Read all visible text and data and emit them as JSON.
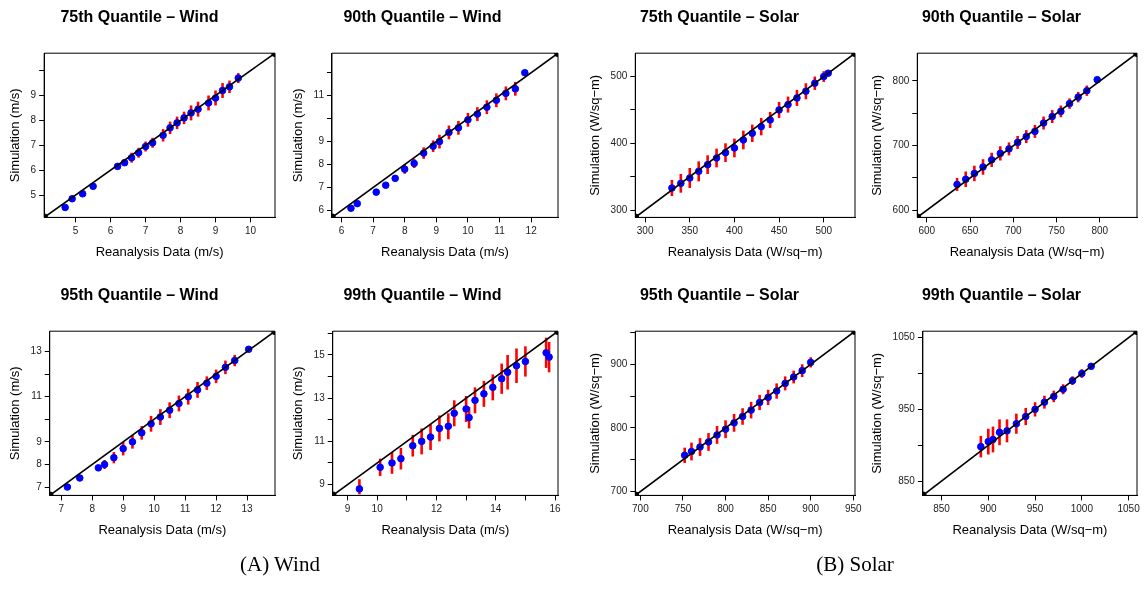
{
  "chart_data": [
    {
      "type": "scatter",
      "title": "75th Quantile – Wind",
      "xlabel": "Reanalysis Data (m/s)",
      "ylabel": "Simulation (m/s)",
      "marker": "circle",
      "xlim": [
        4.1,
        10.7
      ],
      "ylim": [
        4.1,
        10.7
      ],
      "xticks": [
        5,
        6,
        7,
        8,
        9,
        10
      ],
      "yticks": [
        5,
        6,
        7,
        8,
        9,
        {
          "value": 10,
          "label": null
        }
      ],
      "series": [
        {
          "type": "scatter",
          "color": "#0000ff",
          "x": [
            4.7,
            4.9,
            5.2,
            5.5,
            6.2,
            6.4,
            6.6,
            6.8,
            7.0,
            7.2,
            7.5,
            7.7,
            7.9,
            8.1,
            8.3,
            8.5,
            8.8,
            9.0,
            9.2,
            9.4,
            9.65
          ],
          "values": [
            4.5,
            4.85,
            5.05,
            5.35,
            6.15,
            6.3,
            6.5,
            6.7,
            6.95,
            7.1,
            7.4,
            7.7,
            7.9,
            8.1,
            8.3,
            8.45,
            8.7,
            8.9,
            9.2,
            9.35,
            9.7
          ],
          "errors": [
            null,
            null,
            null,
            null,
            null,
            null,
            0.2,
            0.2,
            0.2,
            0.2,
            0.25,
            0.25,
            0.25,
            0.25,
            0.3,
            0.3,
            0.3,
            0.3,
            0.3,
            0.25,
            0.2
          ]
        },
        {
          "type": "line",
          "color": "#000000",
          "x": [
            4.1,
            10.7
          ],
          "values": [
            4.1,
            10.7
          ]
        }
      ]
    },
    {
      "type": "scatter",
      "title": "90th Quantile – Wind",
      "xlabel": "Reanalysis Data (m/s)",
      "ylabel": "Simulation (m/s)",
      "marker": "circle",
      "xlim": [
        5.7,
        12.85
      ],
      "ylim": [
        5.7,
        12.85
      ],
      "xticks": [
        6,
        7,
        8,
        9,
        10,
        11,
        12
      ],
      "yticks": [
        6,
        7,
        8,
        9,
        {
          "value": 10,
          "label": null
        },
        11,
        {
          "value": 12,
          "label": null
        }
      ],
      "series": [
        {
          "type": "scatter",
          "color": "#0000ff",
          "x": [
            6.3,
            6.5,
            7.1,
            7.4,
            7.7,
            8.0,
            8.3,
            8.6,
            8.9,
            9.1,
            9.4,
            9.7,
            10.0,
            10.3,
            10.6,
            10.9,
            11.2,
            11.5,
            11.8
          ],
          "values": [
            6.1,
            6.3,
            6.8,
            7.1,
            7.4,
            7.8,
            8.05,
            8.5,
            8.8,
            9.0,
            9.4,
            9.6,
            9.95,
            10.2,
            10.5,
            10.8,
            11.1,
            11.3,
            12.0
          ],
          "errors": [
            null,
            null,
            null,
            null,
            null,
            0.2,
            0.2,
            0.25,
            0.25,
            0.3,
            0.3,
            0.3,
            0.3,
            0.3,
            0.3,
            0.3,
            0.3,
            0.3,
            null
          ]
        },
        {
          "type": "line",
          "color": "#000000",
          "x": [
            5.7,
            12.85
          ],
          "values": [
            5.7,
            12.85
          ]
        }
      ]
    },
    {
      "type": "scatter",
      "title": "75th Quantile – Solar",
      "xlabel": "Reanalysis Data (W/sq−m)",
      "ylabel": "Simulation (W/sq−m)",
      "marker": "circle",
      "xlim": [
        289,
        535
      ],
      "ylim": [
        289,
        535
      ],
      "xticks": [
        300,
        350,
        400,
        450,
        500
      ],
      "yticks": [
        300,
        {
          "value": 350,
          "label": null
        },
        400,
        {
          "value": 450,
          "label": null
        },
        500
      ],
      "series": [
        {
          "type": "scatter",
          "color": "#0000ff",
          "x": [
            330,
            340,
            350,
            360,
            370,
            380,
            390,
            400,
            410,
            420,
            430,
            440,
            450,
            460,
            470,
            480,
            490,
            500,
            505
          ],
          "values": [
            333,
            340,
            348,
            358,
            368,
            378,
            386,
            393,
            405,
            415,
            425,
            435,
            450,
            458,
            468,
            478,
            490,
            500,
            505
          ],
          "errors": [
            12,
            14,
            15,
            15,
            14,
            14,
            14,
            14,
            14,
            13,
            13,
            12,
            12,
            12,
            12,
            12,
            10,
            8,
            null
          ]
        },
        {
          "type": "line",
          "color": "#000000",
          "x": [
            289,
            535
          ],
          "values": [
            289,
            535
          ]
        }
      ]
    },
    {
      "type": "scatter",
      "title": "90th Quantile – Solar",
      "xlabel": "Reanalysis Data (W/sq−m)",
      "ylabel": "Simulation (W/sq−m)",
      "marker": "circle",
      "xlim": [
        589,
        843
      ],
      "ylim": [
        589,
        843
      ],
      "xticks": [
        600,
        650,
        700,
        750,
        800
      ],
      "yticks": [
        600,
        {
          "value": 650,
          "label": null
        },
        700,
        {
          "value": 750,
          "label": null
        },
        800
      ],
      "series": [
        {
          "type": "scatter",
          "color": "#0000ff",
          "x": [
            635,
            645,
            655,
            665,
            675,
            685,
            695,
            705,
            715,
            725,
            735,
            745,
            755,
            765,
            775,
            785,
            797
          ],
          "values": [
            640,
            648,
            657,
            667,
            678,
            688,
            695,
            705,
            714,
            722,
            735,
            745,
            753,
            765,
            775,
            785,
            802
          ],
          "errors": [
            10,
            12,
            12,
            12,
            11,
            11,
            10,
            10,
            10,
            10,
            10,
            10,
            9,
            8,
            8,
            8,
            null
          ]
        },
        {
          "type": "line",
          "color": "#000000",
          "x": [
            589,
            843
          ],
          "values": [
            589,
            843
          ]
        }
      ]
    },
    {
      "type": "scatter",
      "title": "95th Quantile – Wind",
      "xlabel": "Reanalysis Data (m/s)",
      "ylabel": "Simulation (m/s)",
      "marker": "circle",
      "annotations": [
        "(A) Wind"
      ],
      "xlim": [
        6.63,
        13.9
      ],
      "ylim": [
        6.63,
        13.9
      ],
      "xticks": [
        7,
        8,
        9,
        10,
        11,
        12,
        13
      ],
      "yticks": [
        7,
        8,
        9,
        {
          "value": 10,
          "label": null
        },
        11,
        {
          "value": 12,
          "label": null
        },
        13
      ],
      "series": [
        {
          "type": "scatter",
          "color": "#0000ff",
          "x": [
            7.2,
            7.6,
            8.2,
            8.4,
            8.7,
            9.0,
            9.3,
            9.6,
            9.9,
            10.2,
            10.5,
            10.8,
            11.1,
            11.4,
            11.7,
            12.0,
            12.3,
            12.6,
            13.05
          ],
          "values": [
            7.0,
            7.4,
            7.85,
            8.0,
            8.3,
            8.7,
            9.0,
            9.4,
            9.8,
            10.1,
            10.4,
            10.7,
            11.0,
            11.3,
            11.6,
            11.9,
            12.3,
            12.6,
            13.1
          ],
          "errors": [
            null,
            null,
            null,
            0.2,
            0.25,
            0.3,
            0.3,
            0.3,
            0.35,
            0.35,
            0.35,
            0.35,
            0.35,
            0.35,
            0.3,
            0.3,
            0.3,
            0.25,
            null
          ]
        },
        {
          "type": "line",
          "color": "#000000",
          "x": [
            6.63,
            13.9
          ],
          "values": [
            6.63,
            13.9
          ]
        }
      ]
    },
    {
      "type": "scatter",
      "title": "99th Quantile – Wind",
      "xlabel": "Reanalysis Data (m/s)",
      "ylabel": "Simulation (m/s)",
      "marker": "circle",
      "xlim": [
        8.5,
        16.1
      ],
      "ylim": [
        8.5,
        16.1
      ],
      "xticks": [
        9,
        10,
        {
          "value": 11,
          "label": null
        },
        12,
        {
          "value": 13,
          "label": null
        },
        14,
        {
          "value": 15,
          "label": null
        },
        16
      ],
      "yticks": [
        9,
        {
          "value": 10,
          "label": null
        },
        11,
        {
          "value": 12,
          "label": null
        },
        13,
        {
          "value": 14,
          "label": null
        },
        15,
        {
          "value": 16,
          "label": null
        }
      ],
      "series": [
        {
          "type": "scatter",
          "color": "#0000ff",
          "x": [
            9.4,
            10.1,
            10.5,
            10.8,
            11.2,
            11.5,
            11.8,
            12.1,
            12.4,
            12.6,
            13.0,
            13.1,
            13.3,
            13.6,
            13.9,
            14.2,
            14.4,
            14.7,
            15.0,
            15.7,
            15.8
          ],
          "values": [
            8.8,
            9.8,
            10.0,
            10.2,
            10.8,
            11.0,
            11.2,
            11.6,
            11.7,
            12.3,
            12.5,
            12.1,
            12.9,
            13.2,
            13.5,
            13.9,
            14.2,
            14.5,
            14.7,
            15.1,
            14.9
          ],
          "errors": [
            [
              8.55,
              9.25
            ],
            0.4,
            0.5,
            0.5,
            0.5,
            0.6,
            0.6,
            0.6,
            0.6,
            0.6,
            0.6,
            0.5,
            0.6,
            0.6,
            0.6,
            0.7,
            0.8,
            0.8,
            0.7,
            0.7,
            0.7
          ]
        },
        {
          "type": "line",
          "color": "#000000",
          "x": [
            8.5,
            16.1
          ],
          "values": [
            8.5,
            16.1
          ]
        }
      ]
    },
    {
      "type": "scatter",
      "title": "95th Quantile – Solar",
      "xlabel": "Reanalysis Data (W/sq−m)",
      "ylabel": "Simulation (W/sq−m)",
      "marker": "circle",
      "annotations": [
        "(B) Solar"
      ],
      "xlim": [
        694,
        952
      ],
      "ylim": [
        694,
        952
      ],
      "xticks": [
        700,
        750,
        800,
        850,
        900,
        950
      ],
      "yticks": [
        700,
        {
          "value": 750,
          "label": null
        },
        800,
        {
          "value": 850,
          "label": null
        },
        900,
        {
          "value": 950,
          "label": null
        }
      ],
      "series": [
        {
          "type": "scatter",
          "color": "#0000ff",
          "x": [
            752,
            760,
            770,
            780,
            790,
            800,
            810,
            820,
            830,
            840,
            850,
            860,
            870,
            880,
            890,
            900
          ],
          "values": [
            757,
            763,
            770,
            778,
            789,
            798,
            808,
            818,
            828,
            840,
            848,
            858,
            870,
            880,
            890,
            903
          ],
          "errors": [
            12,
            14,
            14,
            14,
            14,
            14,
            14,
            13,
            13,
            12,
            12,
            12,
            11,
            10,
            10,
            8
          ]
        },
        {
          "type": "line",
          "color": "#000000",
          "x": [
            694,
            952
          ],
          "values": [
            694,
            952
          ]
        }
      ]
    },
    {
      "type": "scatter",
      "title": "99th Quantile – Solar",
      "xlabel": "Reanalysis Data (W/sq−m)",
      "ylabel": "Simulation (W/sq−m)",
      "marker": "circle",
      "xlim": [
        830,
        1059
      ],
      "ylim": [
        830,
        1059
      ],
      "xticks": [
        850,
        900,
        950,
        1000,
        1050
      ],
      "yticks": [
        850,
        {
          "value": 900,
          "label": null
        },
        950,
        {
          "value": 1000,
          "label": null
        },
        1050
      ],
      "series": [
        {
          "type": "scatter",
          "color": "#0000ff",
          "x": [
            892,
            900,
            905,
            912,
            920,
            930,
            940,
            950,
            960,
            970,
            980,
            990,
            1000,
            1010
          ],
          "values": [
            898,
            905,
            908,
            918,
            920,
            930,
            940,
            950,
            960,
            968,
            978,
            990,
            1000,
            1010
          ],
          "errors": [
            15,
            18,
            18,
            18,
            16,
            14,
            12,
            10,
            9,
            8,
            7,
            6,
            6,
            null
          ]
        },
        {
          "type": "line",
          "color": "#000000",
          "x": [
            830,
            1059
          ],
          "values": [
            830,
            1059
          ]
        }
      ]
    }
  ]
}
